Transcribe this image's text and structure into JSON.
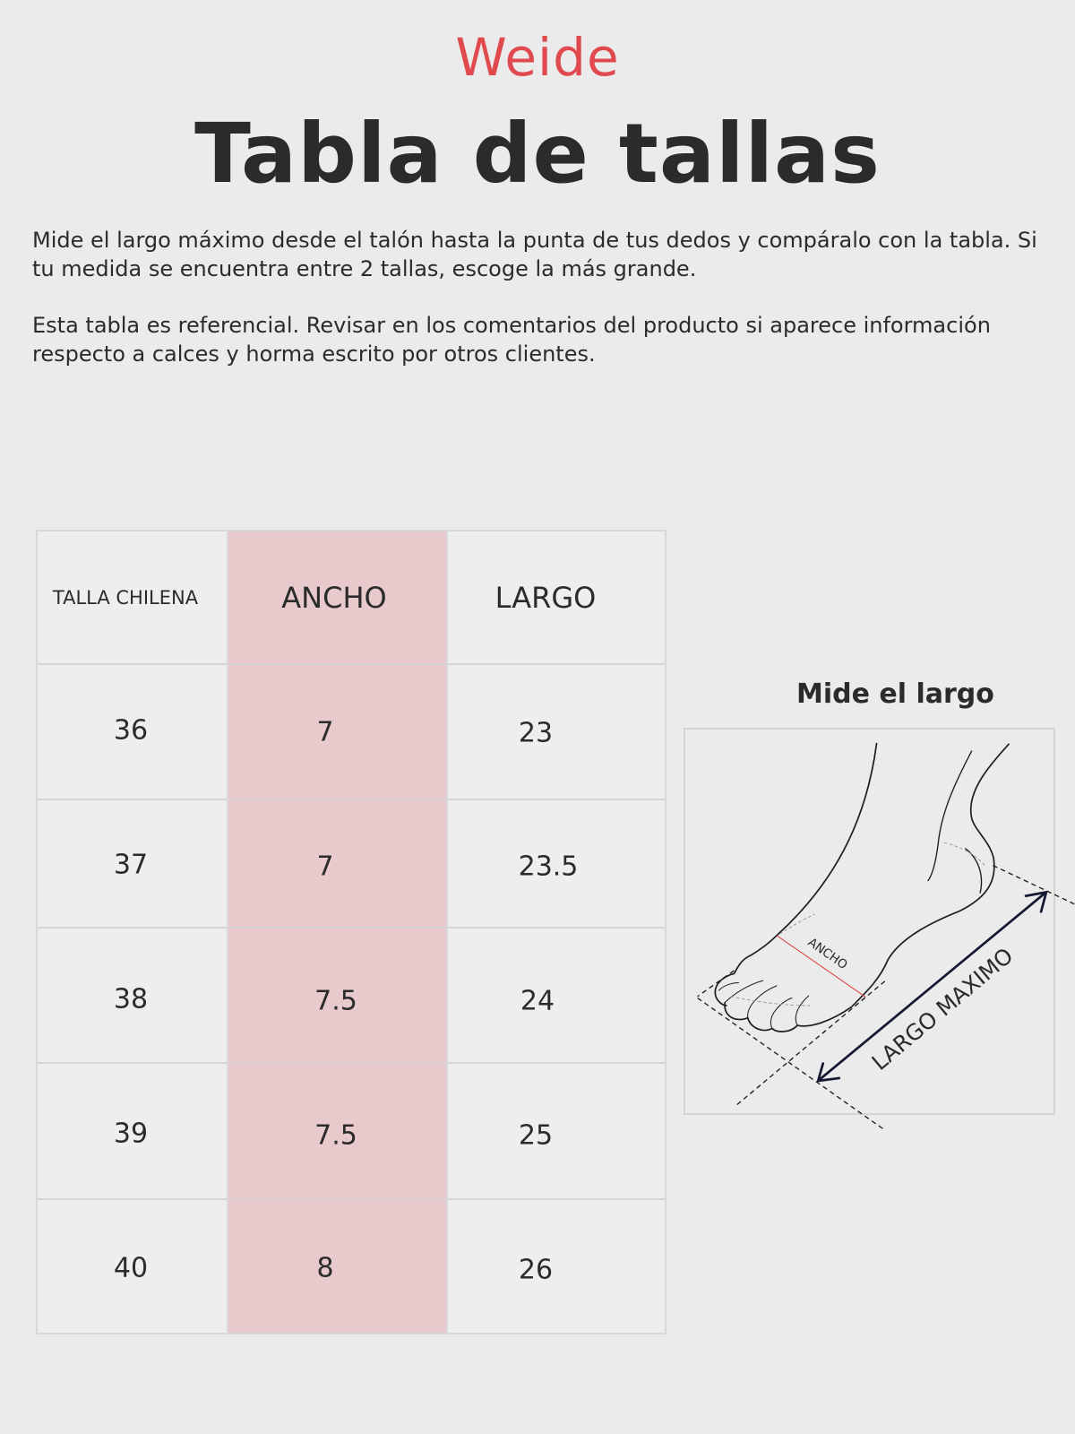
{
  "brand": {
    "logo_text": "Weide",
    "color": "#e04a4f"
  },
  "title": "Tabla de tallas",
  "instructions": [
    "Mide el largo máximo desde el talón hasta la punta de tus dedos y compáralo con la tabla. Si tu medida se encuentra entre 2 tallas, escoge la más grande.",
    "Esta tabla es referencial. Revisar en los comentarios del producto si aparece información respecto a calces y horma escrito por otros clientes."
  ],
  "size_table": {
    "headers": [
      "TALLA CHILENA",
      "ANCHO",
      "LARGO"
    ],
    "rows": [
      [
        "36",
        "7",
        "23"
      ],
      [
        "37",
        "7",
        "23.5"
      ],
      [
        "38",
        "7.5",
        "24"
      ],
      [
        "39",
        "7.5",
        "25"
      ],
      [
        "40",
        "8",
        "26"
      ]
    ],
    "highlight_color": "#e8c9cc"
  },
  "diagram": {
    "title": "Mide el largo",
    "width_label": "ANCHO",
    "length_label": "LARGO MAXIMO"
  }
}
